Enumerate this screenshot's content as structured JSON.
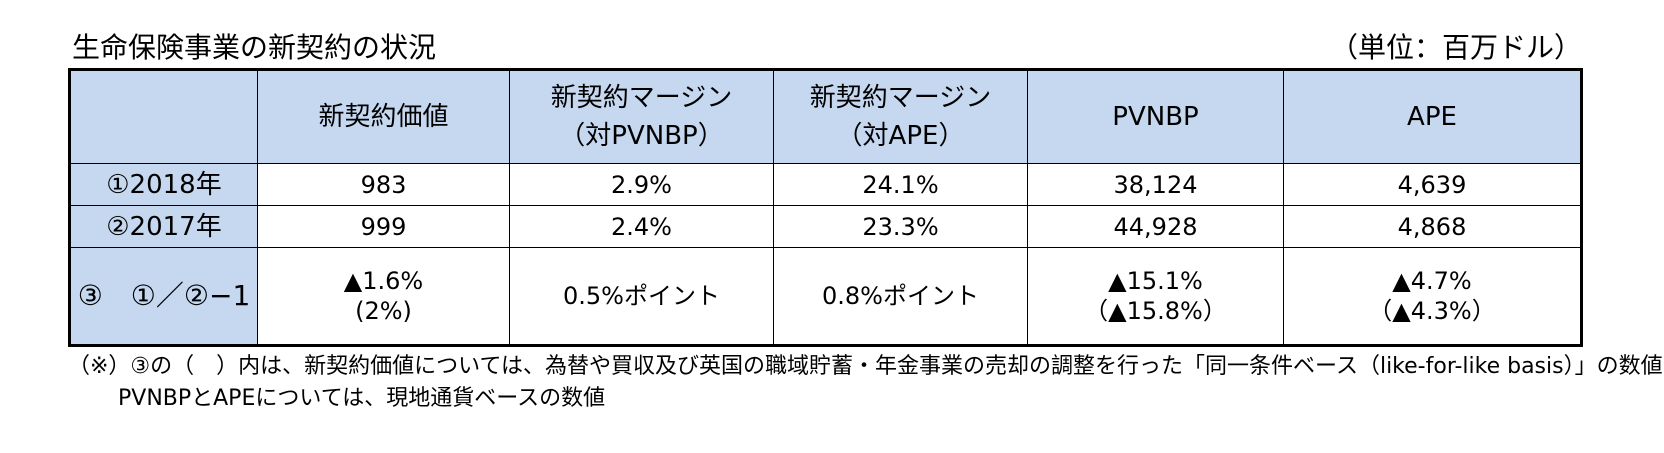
{
  "caption": {
    "title": "生命保険事業の新契約の状況",
    "unit": "（単位：百万ドル）"
  },
  "table": {
    "headers": [
      {
        "lines": [
          ""
        ]
      },
      {
        "lines": [
          "新契約価値"
        ]
      },
      {
        "lines": [
          "新契約マージン",
          "（対PVNBP）"
        ]
      },
      {
        "lines": [
          "新契約マージン",
          "（対APE）"
        ]
      },
      {
        "lines": [
          "PVNBP"
        ]
      },
      {
        "lines": [
          "APE"
        ]
      }
    ],
    "rows": [
      {
        "label": "①2018年",
        "cells": [
          {
            "lines": [
              "983"
            ]
          },
          {
            "lines": [
              "2.9%"
            ]
          },
          {
            "lines": [
              "24.1%"
            ]
          },
          {
            "lines": [
              "38,124"
            ]
          },
          {
            "lines": [
              "4,639"
            ]
          }
        ]
      },
      {
        "label": "②2017年",
        "cells": [
          {
            "lines": [
              "999"
            ]
          },
          {
            "lines": [
              "2.4%"
            ]
          },
          {
            "lines": [
              "23.3%"
            ]
          },
          {
            "lines": [
              "44,928"
            ]
          },
          {
            "lines": [
              "4,868"
            ]
          }
        ]
      },
      {
        "label": "③　①／②−1",
        "cells": [
          {
            "lines": [
              "▲1.6%",
              "(2%)"
            ]
          },
          {
            "lines": [
              "0.5%ポイント"
            ]
          },
          {
            "lines": [
              "0.8%ポイント"
            ]
          },
          {
            "lines": [
              "▲15.1%",
              "（▲15.8%）"
            ]
          },
          {
            "lines": [
              "▲4.7%",
              "（▲4.3%）"
            ]
          }
        ]
      }
    ]
  },
  "notes": {
    "line1": "（※）③の（　）内は、新契約価値については、為替や買収及び英国の職域貯蓄・年金事業の売却の調整を行った「同一条件ベース（like-for-like basis）」の数値",
    "line2": "PVNBPとAPEについては、現地通貨ベースの数値"
  },
  "colors": {
    "header_fill": "#c5d8f0",
    "border": "#000000"
  }
}
